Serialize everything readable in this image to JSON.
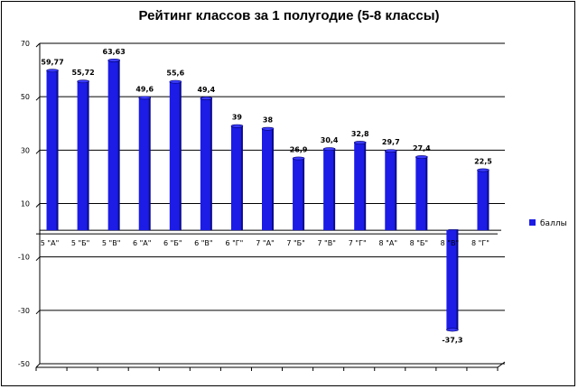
{
  "chart_data": {
    "type": "bar",
    "title": "Рейтинг классов за 1 полугодие (5-8 классы)",
    "categories": [
      "5 \"А\"",
      "5 \"Б\"",
      "5 \"В\"",
      "6 \"А\"",
      "6 \"Б\"",
      "6 \"В\"",
      "6 \"Г\"",
      "7 \"А\"",
      "7 \"Б\"",
      "7 \"В\"",
      "7 \"Г\"",
      "8 \"А\"",
      "8 \"Б\"",
      "8 \"В\"",
      "8 \"Г\""
    ],
    "series": [
      {
        "name": "баллы",
        "values": [
          59.77,
          55.72,
          63.63,
          49.6,
          55.6,
          49.4,
          39,
          38,
          26.9,
          30.4,
          32.8,
          29.7,
          27.4,
          -37.3,
          22.5
        ],
        "labels": [
          "59,77",
          "55,72",
          "63,63",
          "49,6",
          "55,6",
          "49,4",
          "39",
          "38",
          "26,9",
          "30,4",
          "32,8",
          "29,7",
          "27,4",
          "-37,3",
          "22,5"
        ],
        "color": "#1c1ce6"
      }
    ],
    "y_ticks": [
      70,
      50,
      30,
      10,
      -10,
      -30,
      -50
    ],
    "y_tick_labels": [
      "70",
      "50",
      "30",
      "10",
      "-10",
      "-30",
      "-50"
    ],
    "ylim": [
      -50,
      70
    ],
    "grid": true,
    "legend_position": "right",
    "xlabel": "",
    "ylabel": ""
  }
}
